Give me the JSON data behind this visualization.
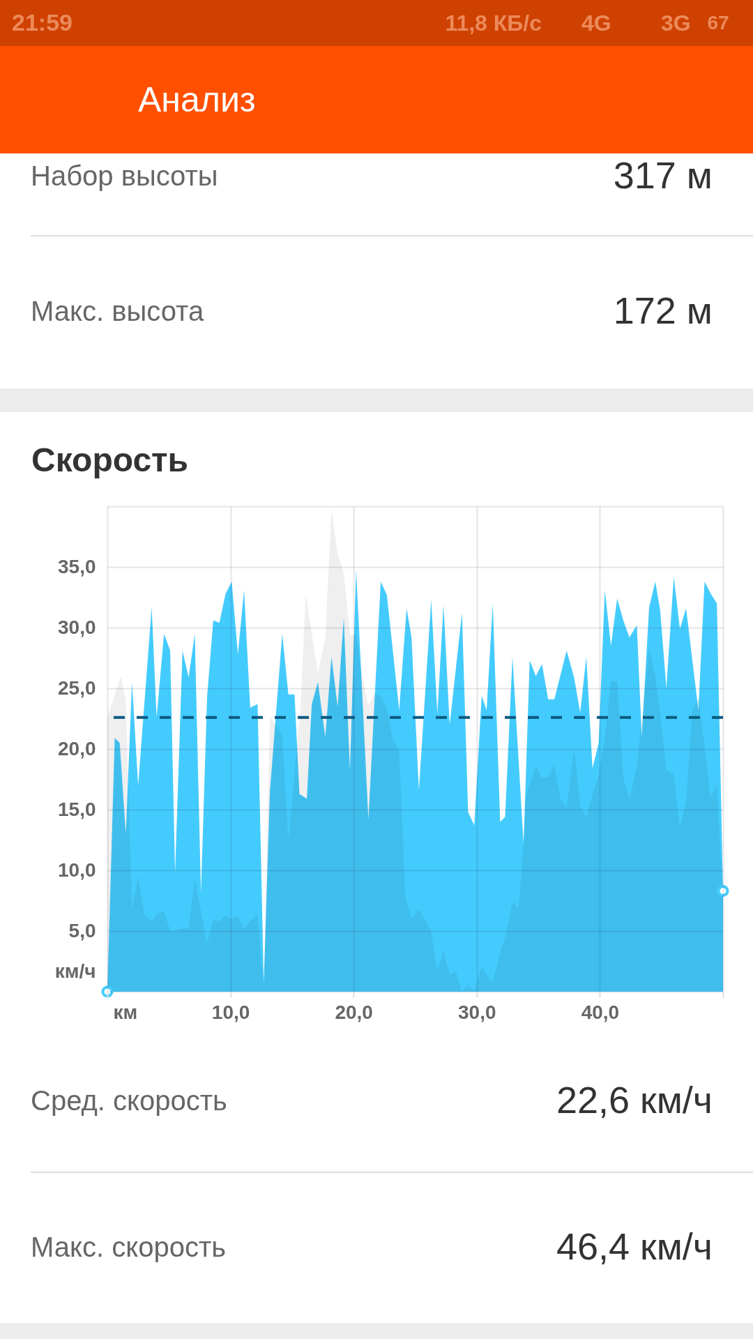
{
  "chart_data": {
    "type": "area",
    "title": "Скорость",
    "xlabel": "км",
    "ylabel": "км/ч",
    "annotations": [
      "21:59",
      "11,8 КБ/с",
      "4G",
      "3G",
      "67",
      "Анализ",
      "Набор высоты",
      "317 м",
      "Макс. высота",
      "172 м",
      "Сред. скорость",
      "22,6 км/ч",
      "Макс. скорость",
      "46,4 км/ч"
    ],
    "xlim": [
      0,
      50
    ],
    "ylim": [
      0,
      40
    ],
    "xticks": [
      {
        "value": 0,
        "label": null
      },
      {
        "value": 10,
        "label": "10,0"
      },
      {
        "value": 20,
        "label": "20,0"
      },
      {
        "value": 30,
        "label": "30,0"
      },
      {
        "value": 40,
        "label": "40,0"
      },
      {
        "value": 50,
        "label": null
      }
    ],
    "yticks": [
      {
        "value": 0,
        "label": null
      },
      {
        "value": 5,
        "label": "5,0"
      },
      {
        "value": 10,
        "label": "10,0"
      },
      {
        "value": 15,
        "label": "15,0"
      },
      {
        "value": 20,
        "label": "20,0"
      },
      {
        "value": 25,
        "label": "25,0"
      },
      {
        "value": 30,
        "label": "30,0"
      },
      {
        "value": 35,
        "label": "35,0"
      },
      {
        "value": 40,
        "label": null
      }
    ],
    "grid": true,
    "series": [
      {
        "color": "#44cbfd",
        "x": [
          0,
          0.6,
          1.0,
          1.5,
          2.0,
          2.5,
          3.6,
          4.0,
          4.6,
          5.1,
          5.5,
          6.1,
          6.6,
          7.1,
          7.6,
          8.1,
          8.6,
          9.1,
          9.6,
          10.1,
          10.6,
          11.1,
          11.6,
          12.2,
          12.7,
          13.2,
          14.2,
          14.7,
          15.2,
          15.6,
          16.2,
          16.6,
          17.1,
          17.7,
          18.2,
          18.7,
          19.2,
          19.7,
          20.2,
          21.2,
          22.2,
          22.7,
          23.7,
          24.3,
          24.7,
          25.3,
          26.3,
          26.8,
          27.3,
          27.8,
          28.8,
          29.3,
          29.8,
          30.4,
          30.8,
          31.3,
          31.9,
          32.3,
          32.9,
          33.8,
          34.3,
          34.8,
          35.3,
          35.8,
          36.3,
          37.3,
          37.9,
          38.4,
          38.9,
          39.4,
          39.9,
          40.4,
          40.9,
          41.4,
          41.9,
          42.4,
          43.0,
          43.4,
          44.0,
          44.5,
          44.9,
          45.4,
          46.0,
          46.5,
          47.0,
          48.0,
          48.5,
          49.0,
          49.5,
          50
        ],
        "values": [
          0,
          20.9,
          20.5,
          13.0,
          25.5,
          17.0,
          31.7,
          22.6,
          29.5,
          28.1,
          9.8,
          28.1,
          25.9,
          29.5,
          8.1,
          24.3,
          30.6,
          30.4,
          32.8,
          33.8,
          27.8,
          33.1,
          23.4,
          23.7,
          0.7,
          16.5,
          29.5,
          24.5,
          24.5,
          16.3,
          15.9,
          23.7,
          25.5,
          21.0,
          27.6,
          23.5,
          30.8,
          18.2,
          34.8,
          14.2,
          33.8,
          32.7,
          23.2,
          31.6,
          29.2,
          16.6,
          32.3,
          22.9,
          31.9,
          22.0,
          31.2,
          14.8,
          13.7,
          24.4,
          23.2,
          32.0,
          14.0,
          14.4,
          27.6,
          12.2,
          27.3,
          26.0,
          27.0,
          24.1,
          24.1,
          28.1,
          25.9,
          23.0,
          27.6,
          18.4,
          20.5,
          33.1,
          28.5,
          32.4,
          30.6,
          29.2,
          30.2,
          21.0,
          31.7,
          33.8,
          31.4,
          25.0,
          34.2,
          29.9,
          31.6,
          23.2,
          33.8,
          32.8,
          32.0,
          8.3
        ]
      },
      {
        "color": "#efefef",
        "x": [
          0,
          1.1,
          1.5,
          2.0,
          2.5,
          3.0,
          3.6,
          4.0,
          4.6,
          5.1,
          6.1,
          6.6,
          7.1,
          7.6,
          8.1,
          8.6,
          9.1,
          9.6,
          10.1,
          10.6,
          11.1,
          11.6,
          12.2,
          12.7,
          13.2,
          14.2,
          14.7,
          15.7,
          16.1,
          16.6,
          17.1,
          17.7,
          18.2,
          18.7,
          19.2,
          19.7,
          20.2,
          20.7,
          21.2,
          21.7,
          22.2,
          22.7,
          23.2,
          23.7,
          24.2,
          24.7,
          25.3,
          25.8,
          26.3,
          26.8,
          27.3,
          27.8,
          28.3,
          28.8,
          29.3,
          29.8,
          30.4,
          30.8,
          31.3,
          31.9,
          32.3,
          32.9,
          33.4,
          33.8,
          34.0,
          34.8,
          35.3,
          35.8,
          36.3,
          36.8,
          37.3,
          37.9,
          38.4,
          38.9,
          39.4,
          39.9,
          40.4,
          40.9,
          41.4,
          41.9,
          42.4,
          43.0,
          44.0,
          44.5,
          44.9,
          45.4,
          46.0,
          46.5,
          47.0,
          47.5,
          48.0,
          48.5,
          49.0,
          49.5,
          50
        ],
        "values": [
          22.6,
          26.0,
          24.0,
          6.8,
          9.5,
          6.4,
          5.8,
          6.4,
          6.7,
          5.0,
          5.2,
          5.2,
          9.4,
          6.6,
          4.0,
          5.9,
          5.8,
          6.3,
          6.0,
          6.3,
          5.2,
          5.8,
          6.4,
          0.5,
          22.7,
          21.2,
          12.5,
          23.6,
          32.8,
          29.5,
          26.3,
          29.2,
          39.8,
          36.1,
          34.5,
          29.4,
          29.4,
          26.0,
          23.6,
          24.6,
          24.3,
          23.3,
          20.7,
          19.9,
          7.8,
          6.0,
          6.8,
          5.9,
          5.0,
          1.7,
          3.4,
          1.4,
          1.7,
          0,
          0.6,
          0.1,
          2.1,
          1.4,
          0.8,
          3.3,
          4.5,
          7.4,
          6.9,
          12.2,
          16.1,
          18.6,
          17.6,
          17.7,
          18.7,
          15.9,
          15.1,
          20.1,
          15.3,
          14.4,
          16.3,
          17.8,
          20.9,
          25.6,
          25.6,
          17.7,
          15.8,
          18.6,
          28.3,
          26.0,
          22.9,
          18.3,
          17.9,
          13.5,
          15.7,
          23.2,
          24.2,
          20.3,
          16.0,
          17.1,
          8.0
        ]
      },
      {
        "type": "scatter",
        "color": "#44cbfd",
        "marker": "circle",
        "x": [
          0,
          50
        ],
        "values": [
          0,
          8.3
        ]
      }
    ],
    "ref_lines": [
      {
        "axis": "y",
        "value": 22.6,
        "color": "#0b5a80",
        "line_style": "dashed"
      }
    ]
  }
}
